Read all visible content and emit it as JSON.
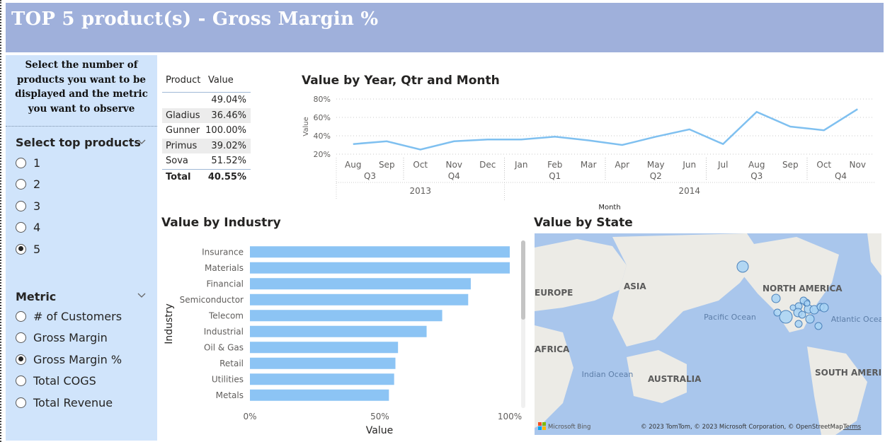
{
  "header": {
    "title": "TOP 5 product(s) - Gross Margin %"
  },
  "sidebar": {
    "intro": "Select the number of products you want to be displayed and the metric you want to observe",
    "top_products": {
      "title": "Select top products",
      "options": [
        "1",
        "2",
        "3",
        "4",
        "5"
      ],
      "selected": "5"
    },
    "metric": {
      "title": "Metric",
      "options": [
        "# of Customers",
        "Gross Margin",
        "Gross Margin %",
        "Total COGS",
        "Total Revenue"
      ],
      "selected": "Gross Margin %"
    }
  },
  "table": {
    "headers": [
      "Product",
      "Value"
    ],
    "rows": [
      {
        "product": "",
        "value": "49.04%"
      },
      {
        "product": "Gladius",
        "value": "36.46%"
      },
      {
        "product": "Gunner",
        "value": "100.00%"
      },
      {
        "product": "Primus",
        "value": "39.02%"
      },
      {
        "product": "Sova",
        "value": "51.52%"
      }
    ],
    "total": {
      "label": "Total",
      "value": "40.55%"
    }
  },
  "chart_data": [
    {
      "type": "line",
      "title": "Value by Year, Qtr and Month",
      "ylabel": "Value",
      "xlabel": "Month",
      "ylim": [
        20,
        80
      ],
      "yticks": [
        "20%",
        "40%",
        "60%",
        "80%"
      ],
      "x": [
        "Aug",
        "Sep",
        "Oct",
        "Nov",
        "Dec",
        "Jan",
        "Feb",
        "Mar",
        "Apr",
        "May",
        "Jun",
        "Jul",
        "Aug",
        "Sep",
        "Oct",
        "Nov"
      ],
      "quarters": [
        {
          "label": "Q3",
          "year": "2013"
        },
        {
          "label": "Q4",
          "year": "2013"
        },
        {
          "label": "Q1",
          "year": "2014"
        },
        {
          "label": "Q2",
          "year": "2014"
        },
        {
          "label": "Q3",
          "year": "2014"
        },
        {
          "label": "Q4",
          "year": "2014"
        }
      ],
      "years": [
        "2013",
        "2014"
      ],
      "series": [
        {
          "values": [
            31,
            34,
            25,
            34,
            36,
            36,
            39,
            35,
            30,
            39,
            47,
            31,
            66,
            50,
            46,
            69
          ]
        }
      ],
      "color": "#7fc0f0",
      "grid": true
    },
    {
      "type": "bar",
      "orientation": "horizontal",
      "title": "Value by Industry",
      "xlabel": "Value",
      "ylabel": "Industry",
      "categories": [
        "Insurance",
        "Materials",
        "Financial",
        "Semiconductor",
        "Telecom",
        "Industrial",
        "Oil & Gas",
        "Retail",
        "Utilities",
        "Metals"
      ],
      "values": [
        100,
        100,
        85,
        84,
        74,
        68,
        57,
        56,
        55.5,
        53.5
      ],
      "xlim": [
        0,
        100
      ],
      "xticks": [
        "0%",
        "50%",
        "100%"
      ],
      "color": "#8cc4f4"
    }
  ],
  "map": {
    "title": "Value by State",
    "labels": [
      "EUROPE",
      "ASIA",
      "NORTH AMERICA",
      "Pacific Ocean",
      "Atlantic Ocean",
      "AFRICA",
      "Indian Ocean",
      "AUSTRALIA",
      "SOUTH AMERICA"
    ],
    "attribution": "© 2023 TomTom, © 2023 Microsoft Corporation, © OpenStreetMap",
    "terms": "Terms",
    "logo": "Microsoft Bing",
    "bubble_color": "#a8d4f5"
  }
}
